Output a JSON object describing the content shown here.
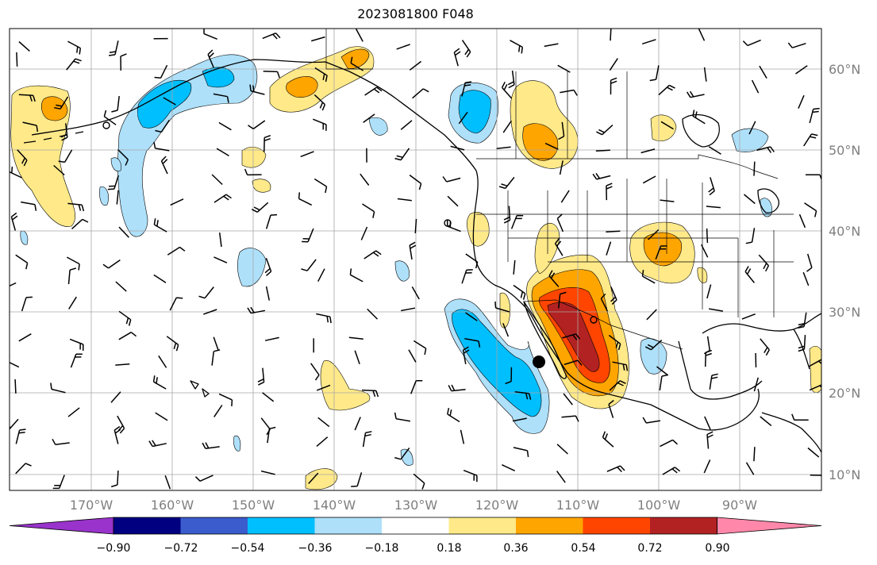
{
  "title": "2023081800 F048",
  "map": {
    "lat_labels": [
      "60°N",
      "50°N",
      "40°N",
      "30°N",
      "20°N",
      "10°N"
    ],
    "lon_labels": [
      "170°W",
      "160°W",
      "150°W",
      "140°W",
      "130°W",
      "120°W",
      "110°W",
      "100°W",
      "90°W"
    ],
    "grid": true,
    "colors": {
      "coast": "#000000",
      "grid": "#a6a6a6",
      "barb": "#000000"
    }
  },
  "colorbar": {
    "tick_labels": [
      "−0.90",
      "−0.72",
      "−0.54",
      "−0.36",
      "−0.18",
      "0.18",
      "0.36",
      "0.54",
      "0.72",
      "0.90"
    ],
    "under_color": "#9933cc",
    "over_color": "#ff88aa",
    "band_colors": [
      "#000080",
      "#3a5ccc",
      "#00bfff",
      "#aee0fa",
      "#ffffff",
      "#ffe989",
      "#ffa500",
      "#ff4500",
      "#b22222"
    ],
    "levels": [
      -0.9,
      -0.72,
      -0.54,
      -0.36,
      -0.18,
      0.18,
      0.36,
      0.54,
      0.72,
      0.9
    ]
  }
}
